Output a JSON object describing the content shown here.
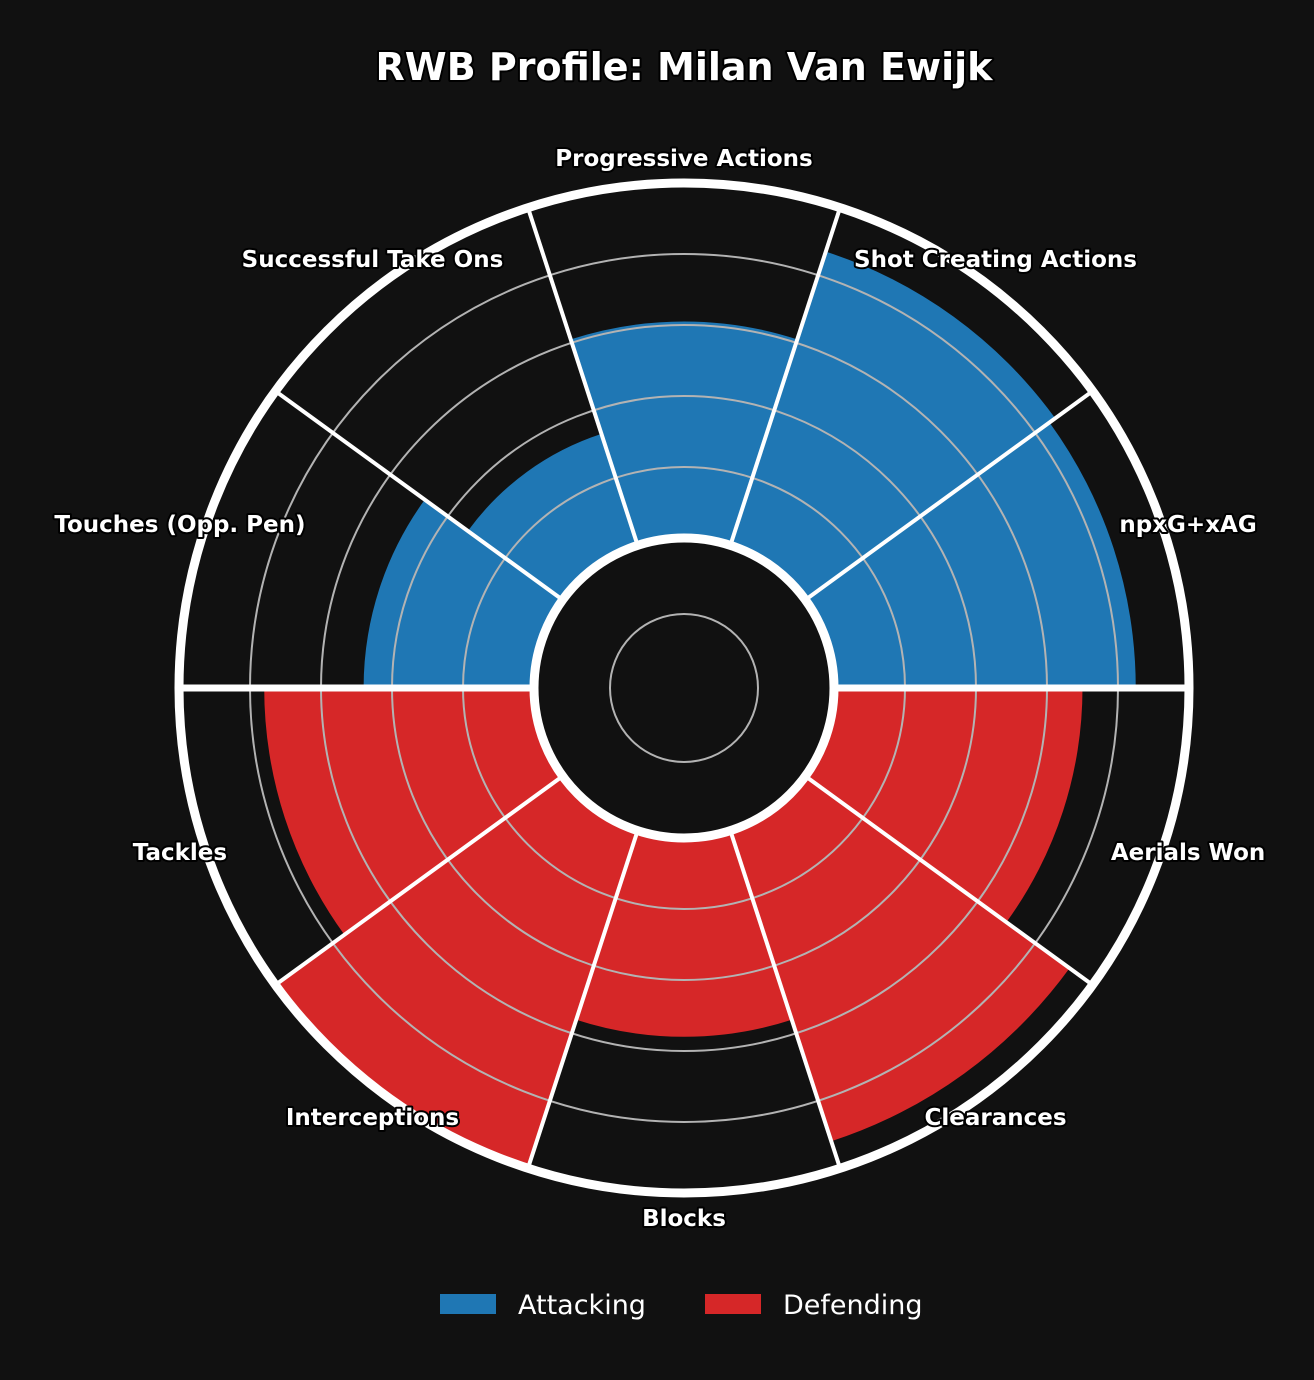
{
  "chart_data": {
    "type": "pizza",
    "title": "RWB Profile: Milan Van Ewijk",
    "parameters": [
      {
        "label": "npxG+xAG",
        "group": "Attacking",
        "value": 85
      },
      {
        "label": "Shot Creating Actions",
        "group": "Attacking",
        "value": 87
      },
      {
        "label": "Progressive Actions",
        "group": "Attacking",
        "value": 61
      },
      {
        "label": "Successful Take Ons",
        "group": "Attacking",
        "value": 33
      },
      {
        "label": "Touches (Opp. Pen)",
        "group": "Attacking",
        "value": 48
      },
      {
        "label": "Tackles",
        "group": "Defending",
        "value": 76
      },
      {
        "label": "Interceptions",
        "group": "Defending",
        "value": 100
      },
      {
        "label": "Blocks",
        "group": "Defending",
        "value": 56
      },
      {
        "label": "Clearances",
        "group": "Defending",
        "value": 92
      },
      {
        "label": "Aerials Won",
        "group": "Defending",
        "value": 70
      }
    ],
    "gridlines": [
      20,
      40,
      60,
      80
    ],
    "value_range": [
      0,
      100
    ],
    "legend": {
      "placement": "bottom-center",
      "entries": [
        {
          "name": "Attacking",
          "color": "#1f77b4"
        },
        {
          "name": "Defending",
          "color": "#d62728"
        }
      ]
    },
    "colors": {
      "Attacking": "#1f77b4",
      "Defending": "#d62728",
      "background": "#111111",
      "separator": "#ffffff",
      "grid": "#b3b3b3"
    }
  }
}
